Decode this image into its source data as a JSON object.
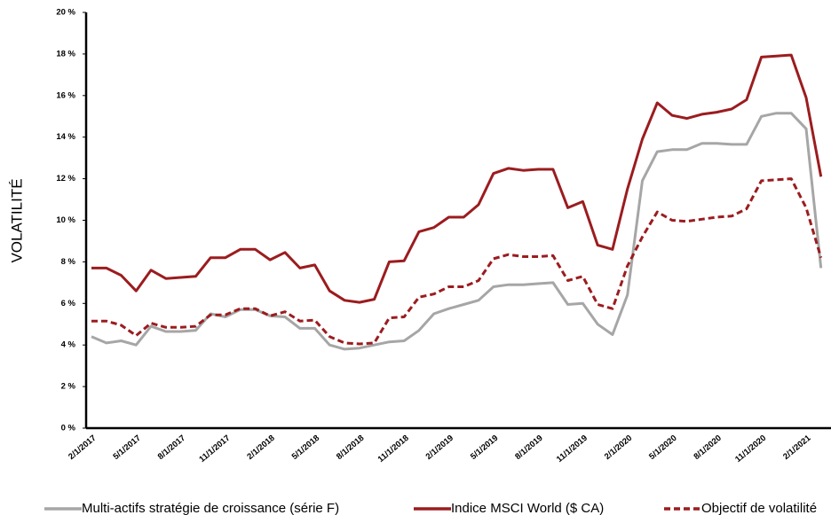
{
  "chart_data": {
    "type": "line",
    "y_label": "VOLATILITÉ",
    "categories": [
      "2/1/2017",
      null,
      null,
      "5/1/2017",
      null,
      null,
      "8/1/2017",
      null,
      null,
      "11/1/2017",
      null,
      null,
      "2/1/2018",
      null,
      null,
      "5/1/2018",
      null,
      null,
      "8/1/2018",
      null,
      null,
      "11/1/2018",
      null,
      null,
      "2/1/2019",
      null,
      null,
      "5/1/2019",
      null,
      null,
      "8/1/2019",
      null,
      null,
      "11/1/2019",
      null,
      null,
      "2/1/2020",
      null,
      null,
      "5/1/2020",
      null,
      null,
      "8/1/2020",
      null,
      null,
      "11/1/2020",
      null,
      null,
      "2/1/2021",
      null
    ],
    "series": [
      {
        "name": "Multi-actifs stratégie de croissance (série F)",
        "color": "#a6a6a6",
        "dashed": false,
        "values": [
          4.4,
          4.1,
          4.2,
          4.0,
          4.9,
          4.65,
          4.65,
          4.7,
          5.5,
          5.35,
          5.7,
          5.7,
          5.4,
          5.35,
          4.8,
          4.8,
          4.0,
          3.8,
          3.85,
          4.0,
          4.15,
          4.2,
          4.7,
          5.5,
          5.75,
          5.95,
          6.15,
          6.8,
          6.9,
          6.9,
          6.95,
          7.0,
          5.95,
          6.0,
          5.0,
          4.5,
          6.4,
          11.9,
          13.3,
          13.4,
          13.4,
          13.7,
          13.7,
          13.65,
          13.65,
          15.0,
          15.15,
          15.15,
          14.4,
          7.7
        ]
      },
      {
        "name": "Indice MSCI World ($ CA)",
        "color": "#9b1c1f",
        "dashed": false,
        "values": [
          7.7,
          7.7,
          7.35,
          6.6,
          7.6,
          7.2,
          7.25,
          7.3,
          8.2,
          8.2,
          8.6,
          8.6,
          8.1,
          8.45,
          7.7,
          7.85,
          6.6,
          6.15,
          6.05,
          6.2,
          8.0,
          8.05,
          9.45,
          9.65,
          10.15,
          10.15,
          10.75,
          12.25,
          12.5,
          12.4,
          12.45,
          12.45,
          10.6,
          10.9,
          8.8,
          8.6,
          11.5,
          13.9,
          15.65,
          15.05,
          14.9,
          15.1,
          15.2,
          15.35,
          15.8,
          17.85,
          17.9,
          17.95,
          15.9,
          12.1
        ]
      },
      {
        "name": "Objectif de volatilité",
        "color": "#9b1c1f",
        "dashed": true,
        "values": [
          5.15,
          5.15,
          4.95,
          4.45,
          5.05,
          4.85,
          4.85,
          4.9,
          5.45,
          5.45,
          5.75,
          5.75,
          5.4,
          5.6,
          5.15,
          5.2,
          4.4,
          4.1,
          4.05,
          4.1,
          5.3,
          5.35,
          6.3,
          6.45,
          6.8,
          6.8,
          7.1,
          8.15,
          8.35,
          8.25,
          8.25,
          8.3,
          7.1,
          7.3,
          5.95,
          5.75,
          7.8,
          9.2,
          10.4,
          10.0,
          9.95,
          10.05,
          10.15,
          10.2,
          10.55,
          11.9,
          11.95,
          12.0,
          10.6,
          8.2
        ]
      }
    ],
    "ylim": [
      0,
      20
    ],
    "yticks": [
      {
        "value": 0,
        "label": "0 %"
      },
      {
        "value": 2,
        "label": "2 %"
      },
      {
        "value": 4,
        "label": "4 %"
      },
      {
        "value": 6,
        "label": "6 %"
      },
      {
        "value": 8,
        "label": "8 %"
      },
      {
        "value": 10,
        "label": "10 %"
      },
      {
        "value": 12,
        "label": "12 %"
      },
      {
        "value": 14,
        "label": "14 %"
      },
      {
        "value": 16,
        "label": "16 %"
      },
      {
        "value": 18,
        "label": "18 %"
      },
      {
        "value": 20,
        "label": "20 %"
      }
    ],
    "grid": false
  }
}
